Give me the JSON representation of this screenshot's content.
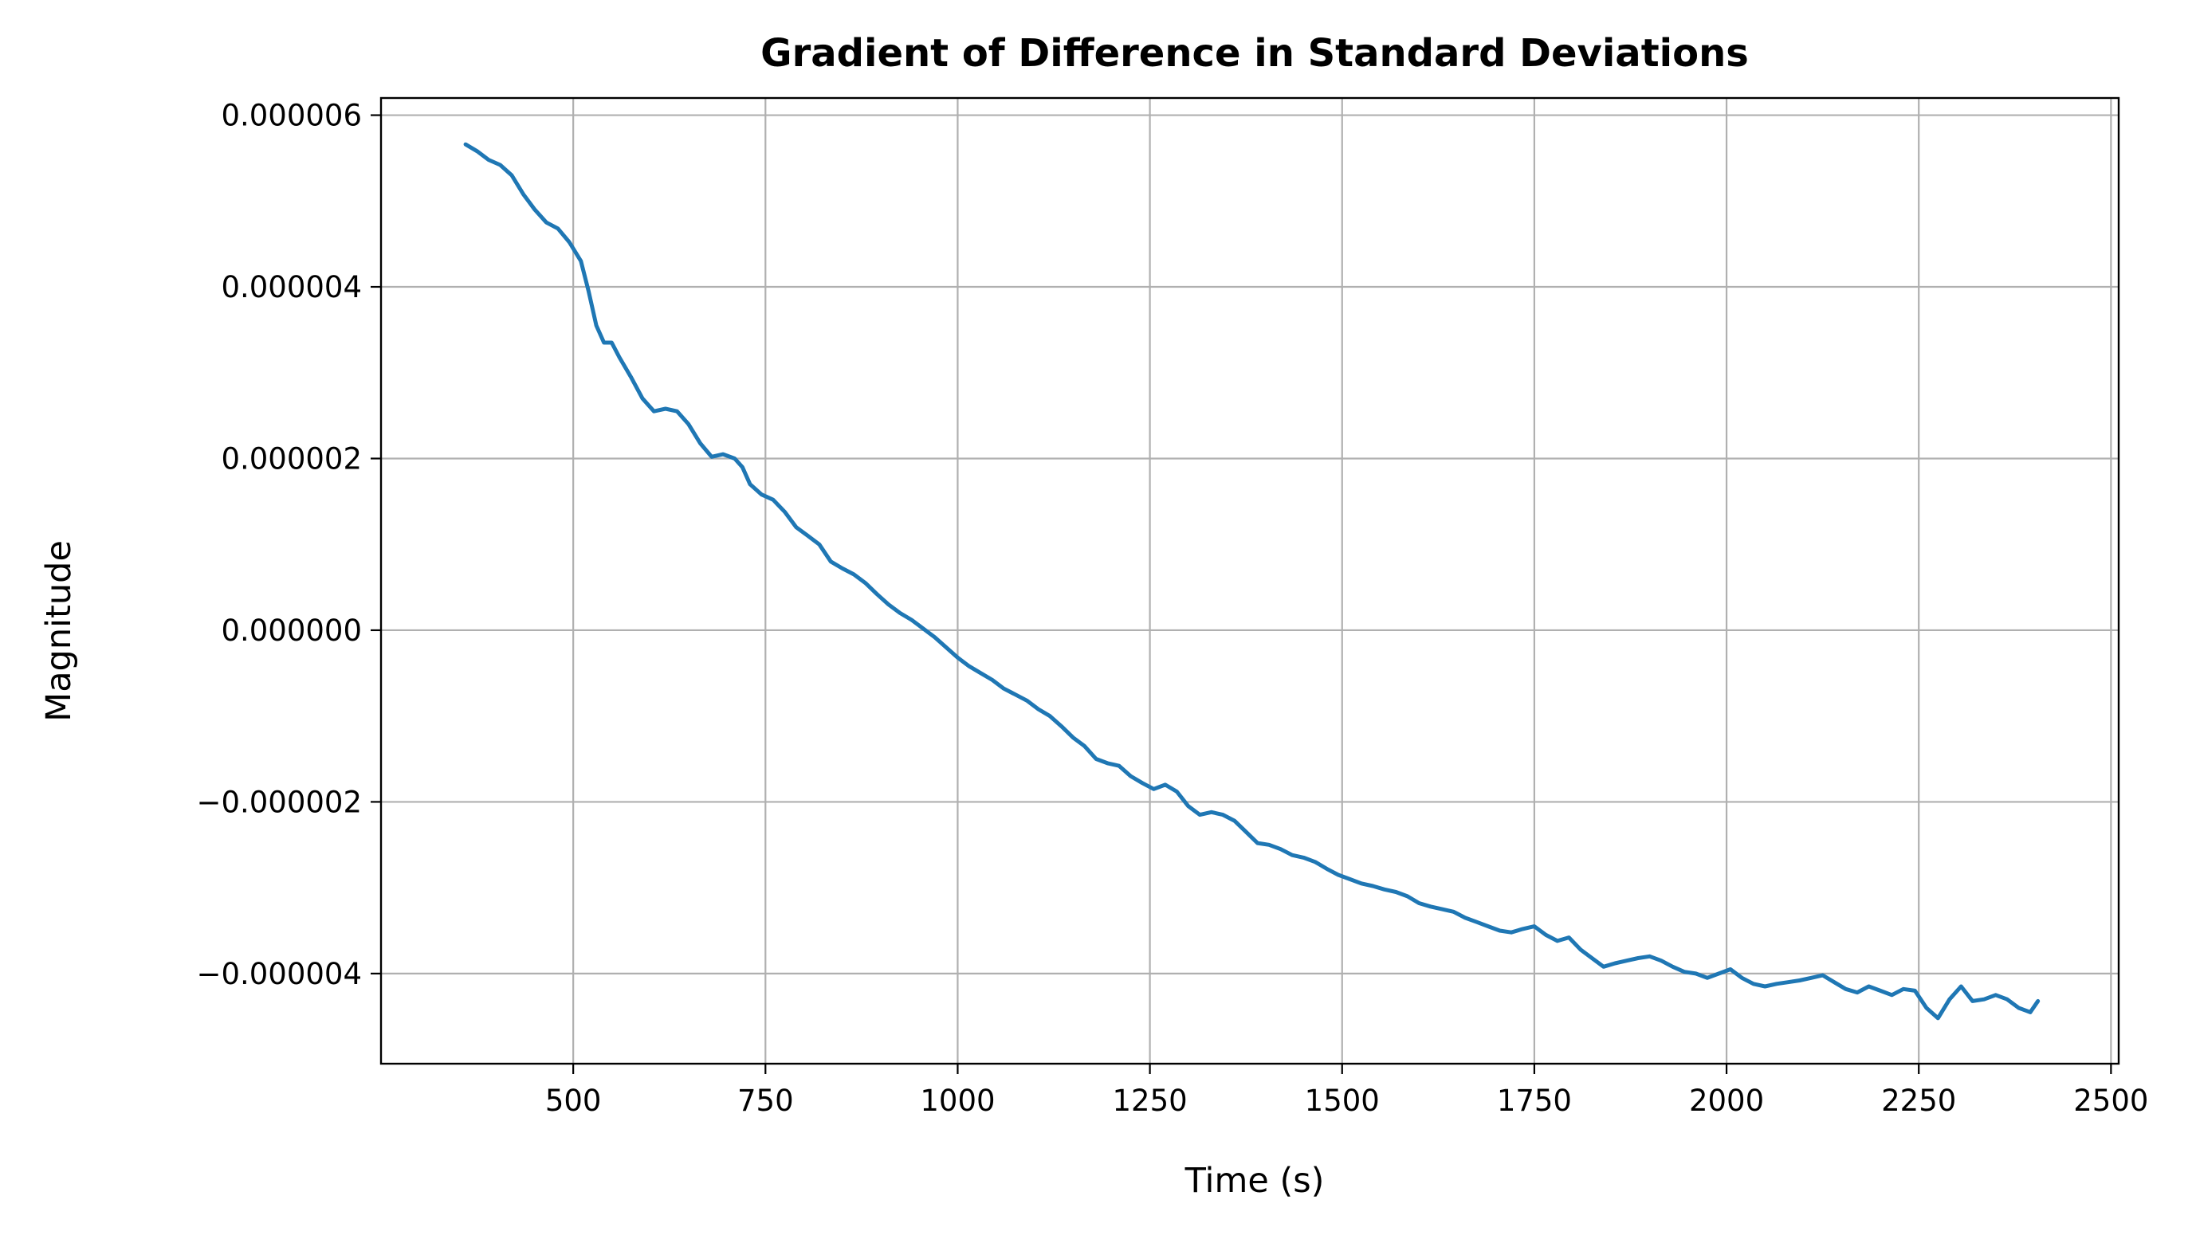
{
  "chart_data": {
    "type": "line",
    "title": "Gradient of Difference in Standard Deviations",
    "xlabel": "Time (s)",
    "ylabel": "Magnitude",
    "xlim": [
      250,
      2510
    ],
    "ylim": [
      -5.05e-06,
      6.2e-06
    ],
    "grid": true,
    "legend": "none",
    "x_ticks": [
      500,
      750,
      1000,
      1250,
      1500,
      1750,
      2000,
      2250,
      2500
    ],
    "x_tick_labels": [
      "500",
      "750",
      "1000",
      "1250",
      "1500",
      "1750",
      "2000",
      "2250",
      "2500"
    ],
    "y_ticks": [
      -4e-06,
      -2e-06,
      0.0,
      2e-06,
      4e-06,
      6e-06
    ],
    "y_tick_labels": [
      "−0.000004",
      "−0.000002",
      "0.000000",
      "0.000002",
      "0.000004",
      "0.000006"
    ],
    "series": [
      {
        "color": "#1f77b4",
        "x": [
          360,
          375,
          390,
          405,
          420,
          435,
          450,
          465,
          480,
          495,
          510,
          520,
          530,
          540,
          550,
          560,
          575,
          590,
          605,
          620,
          635,
          650,
          665,
          680,
          695,
          710,
          720,
          730,
          745,
          760,
          775,
          790,
          805,
          820,
          835,
          850,
          865,
          880,
          895,
          910,
          925,
          940,
          955,
          970,
          985,
          1000,
          1015,
          1030,
          1045,
          1060,
          1075,
          1090,
          1105,
          1120,
          1135,
          1150,
          1165,
          1180,
          1195,
          1210,
          1225,
          1240,
          1255,
          1270,
          1285,
          1300,
          1315,
          1330,
          1345,
          1360,
          1375,
          1390,
          1405,
          1420,
          1435,
          1450,
          1465,
          1480,
          1495,
          1510,
          1525,
          1540,
          1555,
          1570,
          1585,
          1600,
          1615,
          1630,
          1645,
          1660,
          1675,
          1690,
          1705,
          1720,
          1735,
          1750,
          1765,
          1780,
          1795,
          1810,
          1825,
          1840,
          1855,
          1870,
          1885,
          1900,
          1915,
          1930,
          1945,
          1960,
          1975,
          1990,
          2005,
          2020,
          2035,
          2050,
          2065,
          2080,
          2095,
          2110,
          2125,
          2140,
          2155,
          2170,
          2185,
          2200,
          2215,
          2230,
          2245,
          2260,
          2275,
          2290,
          2305,
          2320,
          2335,
          2350,
          2365,
          2380,
          2395,
          2405
        ],
        "y": [
          5.66e-06,
          5.58e-06,
          5.48e-06,
          5.42e-06,
          5.3e-06,
          5.08e-06,
          4.9e-06,
          4.75e-06,
          4.68e-06,
          4.52e-06,
          4.3e-06,
          3.95e-06,
          3.55e-06,
          3.35e-06,
          3.35e-06,
          3.18e-06,
          2.95e-06,
          2.7e-06,
          2.55e-06,
          2.58e-06,
          2.55e-06,
          2.4e-06,
          2.18e-06,
          2.02e-06,
          2.05e-06,
          2e-06,
          1.9e-06,
          1.7e-06,
          1.58e-06,
          1.52e-06,
          1.38e-06,
          1.2e-06,
          1.1e-06,
          1e-06,
          8e-07,
          7.2e-07,
          6.5e-07,
          5.5e-07,
          4.2e-07,
          3e-07,
          2e-07,
          1.2e-07,
          2e-08,
          -8e-08,
          -2e-07,
          -3.2e-07,
          -4.2e-07,
          -5e-07,
          -5.8e-07,
          -6.8e-07,
          -7.5e-07,
          -8.2e-07,
          -9.2e-07,
          -1e-06,
          -1.12e-06,
          -1.25e-06,
          -1.35e-06,
          -1.5e-06,
          -1.55e-06,
          -1.58e-06,
          -1.7e-06,
          -1.78e-06,
          -1.85e-06,
          -1.8e-06,
          -1.88e-06,
          -2.05e-06,
          -2.15e-06,
          -2.12e-06,
          -2.15e-06,
          -2.22e-06,
          -2.35e-06,
          -2.48e-06,
          -2.5e-06,
          -2.55e-06,
          -2.62e-06,
          -2.65e-06,
          -2.7e-06,
          -2.78e-06,
          -2.85e-06,
          -2.9e-06,
          -2.95e-06,
          -2.98e-06,
          -3.02e-06,
          -3.05e-06,
          -3.1e-06,
          -3.18e-06,
          -3.22e-06,
          -3.25e-06,
          -3.28e-06,
          -3.35e-06,
          -3.4e-06,
          -3.45e-06,
          -3.5e-06,
          -3.52e-06,
          -3.48e-06,
          -3.45e-06,
          -3.55e-06,
          -3.62e-06,
          -3.58e-06,
          -3.72e-06,
          -3.82e-06,
          -3.92e-06,
          -3.88e-06,
          -3.85e-06,
          -3.82e-06,
          -3.8e-06,
          -3.85e-06,
          -3.92e-06,
          -3.98e-06,
          -4e-06,
          -4.05e-06,
          -4e-06,
          -3.95e-06,
          -4.05e-06,
          -4.12e-06,
          -4.15e-06,
          -4.12e-06,
          -4.1e-06,
          -4.08e-06,
          -4.05e-06,
          -4.02e-06,
          -4.1e-06,
          -4.18e-06,
          -4.22e-06,
          -4.15e-06,
          -4.2e-06,
          -4.25e-06,
          -4.18e-06,
          -4.2e-06,
          -4.4e-06,
          -4.52e-06,
          -4.3e-06,
          -4.15e-06,
          -4.32e-06,
          -4.3e-06,
          -4.25e-06,
          -4.3e-06,
          -4.4e-06,
          -4.45e-06,
          -4.32e-06
        ]
      }
    ]
  }
}
